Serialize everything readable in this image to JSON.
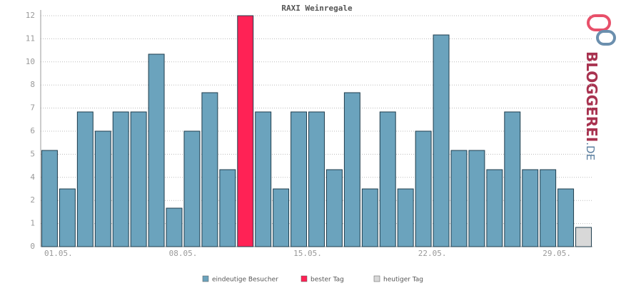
{
  "chart_data": {
    "type": "bar",
    "title": "RAXI Weinregale",
    "categories": [
      "01.05.",
      null,
      null,
      null,
      null,
      null,
      null,
      "08.05.",
      null,
      null,
      null,
      null,
      null,
      null,
      "15.05.",
      null,
      null,
      null,
      null,
      null,
      null,
      "22.05.",
      null,
      null,
      null,
      null,
      null,
      null,
      "29.05.",
      null,
      null
    ],
    "series": [
      {
        "name": "eindeutige Besucher",
        "color": "#6ba3bd",
        "values": [
          5,
          3,
          7,
          6,
          7,
          7,
          10,
          2,
          6,
          8,
          4,
          null,
          7,
          3,
          7,
          7,
          4,
          8,
          3,
          7,
          3,
          6,
          11,
          5,
          5,
          4,
          7,
          4,
          4,
          3,
          null
        ]
      },
      {
        "name": "bester Tag",
        "color": "#ff2255",
        "values": [
          null,
          null,
          null,
          null,
          null,
          null,
          null,
          null,
          null,
          null,
          null,
          12,
          null,
          null,
          null,
          null,
          null,
          null,
          null,
          null,
          null,
          null,
          null,
          null,
          null,
          null,
          null,
          null,
          null,
          null,
          null
        ]
      },
      {
        "name": "heutiger Tag",
        "color": "#d8d8d8",
        "values": [
          null,
          null,
          null,
          null,
          null,
          null,
          null,
          null,
          null,
          null,
          null,
          null,
          null,
          null,
          null,
          null,
          null,
          null,
          null,
          null,
          null,
          null,
          null,
          null,
          null,
          null,
          null,
          null,
          null,
          null,
          1
        ]
      }
    ],
    "ylim": [
      0,
      12
    ],
    "yticks": [
      0,
      {
        "value": 1.2,
        "label": "1"
      },
      {
        "value": 2.4,
        "label": "2"
      },
      {
        "value": 3.6,
        "label": "4"
      },
      {
        "value": 4.8,
        "label": "5"
      },
      6,
      {
        "value": 7.2,
        "label": "7"
      },
      {
        "value": 8.4,
        "label": "8"
      },
      {
        "value": 9.6,
        "label": "10"
      },
      {
        "value": 10.8,
        "label": "11"
      },
      12
    ],
    "grid": true
  },
  "logo": {
    "text": "BLOGGEREI",
    "suffix": ".DE"
  }
}
